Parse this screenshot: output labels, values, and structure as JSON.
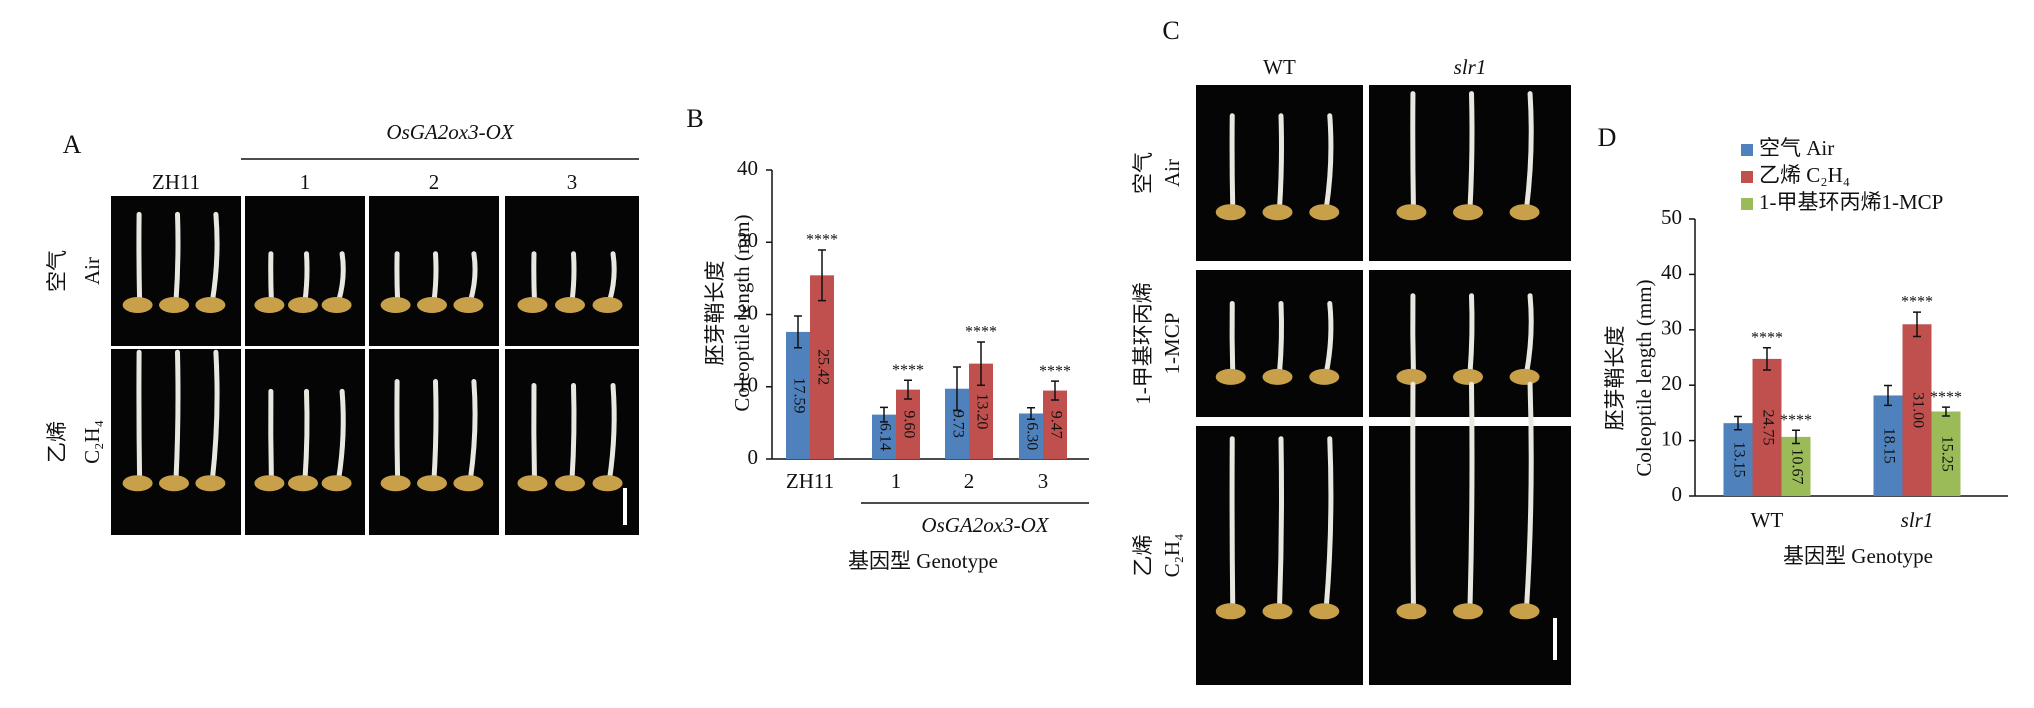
{
  "photo_panels": [
    {
      "panel_label": "A",
      "group_label": "OsGA2ox3-OX",
      "columns": [
        "ZH11",
        "1",
        "2",
        "3"
      ],
      "rows": [
        [
          "空气",
          "Air"
        ],
        [
          "乙烯",
          "C₂H₄"
        ]
      ]
    },
    {
      "panel_label": "C",
      "columns": [
        "WT",
        "slr1"
      ],
      "rows": [
        [
          "空气",
          "Air"
        ],
        [
          "1-甲基环丙烯",
          "1-MCP"
        ],
        [
          "乙烯",
          "C₂H₄"
        ]
      ]
    }
  ],
  "chart_data": [
    {
      "type": "bar",
      "panel_label": "B",
      "y_label": [
        "胚芽鞘长度",
        "Coleoptile length (mm)"
      ],
      "x_label": "基因型 Genotype",
      "group_label": "OsGA2ox3-OX",
      "categories": [
        "ZH11",
        "1",
        "2",
        "3"
      ],
      "series": [
        {
          "color": "#4f81bd",
          "values": [
            17.59,
            6.14,
            9.73,
            6.3
          ],
          "value_labels": [
            "17.59",
            "6.14",
            "9.73",
            "6.30"
          ],
          "errors": [
            2.2,
            1.0,
            3.0,
            0.8
          ]
        },
        {
          "color": "#c0504d",
          "values": [
            25.42,
            9.6,
            13.2,
            9.47
          ],
          "value_labels": [
            "25.42",
            "9.60",
            "13.20",
            "9.47"
          ],
          "errors": [
            3.5,
            1.3,
            3.0,
            1.3
          ],
          "significance": [
            "****",
            "****",
            "****",
            "****"
          ]
        }
      ],
      "ylim": [
        0,
        40
      ],
      "yticks": [
        0,
        10,
        20,
        30,
        40
      ]
    },
    {
      "type": "bar",
      "panel_label": "D",
      "y_label": [
        "胚芽鞘长度",
        "Coleoptile length (mm)"
      ],
      "x_label": "基因型 Genotype",
      "categories": [
        "WT",
        "slr1"
      ],
      "legend": "top-left",
      "series": [
        {
          "name": "空气 Air",
          "color": "#4f81bd",
          "values": [
            13.15,
            18.15
          ],
          "value_labels": [
            "13.15",
            "18.15"
          ],
          "errors": [
            1.2,
            1.8
          ]
        },
        {
          "name": "乙烯 C₂H₄",
          "color": "#c0504d",
          "values": [
            24.75,
            31.0
          ],
          "value_labels": [
            "24.75",
            "31.00"
          ],
          "errors": [
            2.0,
            2.2
          ],
          "significance": [
            "****",
            "****"
          ]
        },
        {
          "name": "1-甲基环丙烯1-MCP",
          "color": "#9bbb59",
          "values": [
            10.67,
            15.25
          ],
          "value_labels": [
            "10.67",
            "15.25"
          ],
          "errors": [
            1.2,
            0.8
          ],
          "significance": [
            "****",
            "****"
          ]
        }
      ],
      "ylim": [
        0,
        50
      ],
      "yticks": [
        0,
        10,
        20,
        30,
        40,
        50
      ]
    }
  ]
}
